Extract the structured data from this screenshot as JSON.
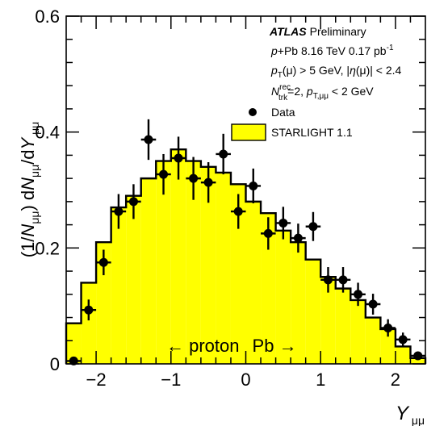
{
  "chart_data": {
    "type": "histogram-with-points",
    "xlabel": "Y_μμ",
    "ylabel": "(1/N_μμ) dN_μμ/dY_μμ",
    "xlim": [
      -2.4,
      2.4
    ],
    "ylim": [
      0,
      0.6
    ],
    "xticks": [
      "−2",
      "−1",
      "0",
      "1",
      "2"
    ],
    "yticks": [
      "0",
      "0.2",
      "0.4",
      "0.6"
    ],
    "bin_edges": [
      -2.4,
      -2.2,
      -2.0,
      -1.8,
      -1.6,
      -1.4,
      -1.2,
      -1.0,
      -0.8,
      -0.6,
      -0.4,
      -0.2,
      0.0,
      0.2,
      0.4,
      0.6,
      0.8,
      1.0,
      1.2,
      1.4,
      1.6,
      1.8,
      2.0,
      2.2,
      2.4
    ],
    "series": [
      {
        "name": "STARLIGHT 1.1",
        "type": "histogram",
        "color": "#ffff00",
        "values": [
          0.07,
          0.14,
          0.21,
          0.27,
          0.29,
          0.32,
          0.35,
          0.37,
          0.35,
          0.34,
          0.33,
          0.31,
          0.28,
          0.26,
          0.23,
          0.21,
          0.18,
          0.15,
          0.13,
          0.11,
          0.08,
          0.06,
          0.03,
          0.01
        ]
      },
      {
        "name": "Data",
        "type": "points",
        "color": "#000000",
        "x": [
          -2.3,
          -2.1,
          -1.9,
          -1.7,
          -1.5,
          -1.3,
          -1.1,
          -0.9,
          -0.7,
          -0.5,
          -0.3,
          -0.1,
          0.1,
          0.3,
          0.5,
          0.7,
          0.9,
          1.1,
          1.3,
          1.5,
          1.7,
          1.9,
          2.1,
          2.3
        ],
        "y": [
          0.005,
          0.093,
          0.175,
          0.263,
          0.28,
          0.387,
          0.327,
          0.355,
          0.32,
          0.313,
          0.362,
          0.263,
          0.307,
          0.225,
          0.243,
          0.217,
          0.237,
          0.145,
          0.145,
          0.12,
          0.103,
          0.062,
          0.042,
          0.014
        ],
        "yerr": [
          0.006,
          0.018,
          0.022,
          0.03,
          0.03,
          0.035,
          0.035,
          0.037,
          0.037,
          0.035,
          0.035,
          0.03,
          0.03,
          0.028,
          0.028,
          0.025,
          0.025,
          0.022,
          0.022,
          0.02,
          0.018,
          0.015,
          0.012,
          0.006
        ]
      }
    ],
    "legend": {
      "placement": "top-right",
      "atlas_bold": "ATLAS",
      "atlas_rest": "Preliminary",
      "line1": "p+Pb 8.16 TeV 0.17 pb⁻¹",
      "line2": "p_T(μ) > 5 GeV, |η(μ)| < 2.4",
      "line3": "N_trk^rec=2, p_T,μμ < 2 GeV",
      "data_label": "Data",
      "model_label": "STARLIGHT 1.1"
    },
    "annotation": {
      "left_arrow": "←",
      "proton": "proton",
      "pb": "Pb",
      "right_arrow": "→"
    }
  }
}
